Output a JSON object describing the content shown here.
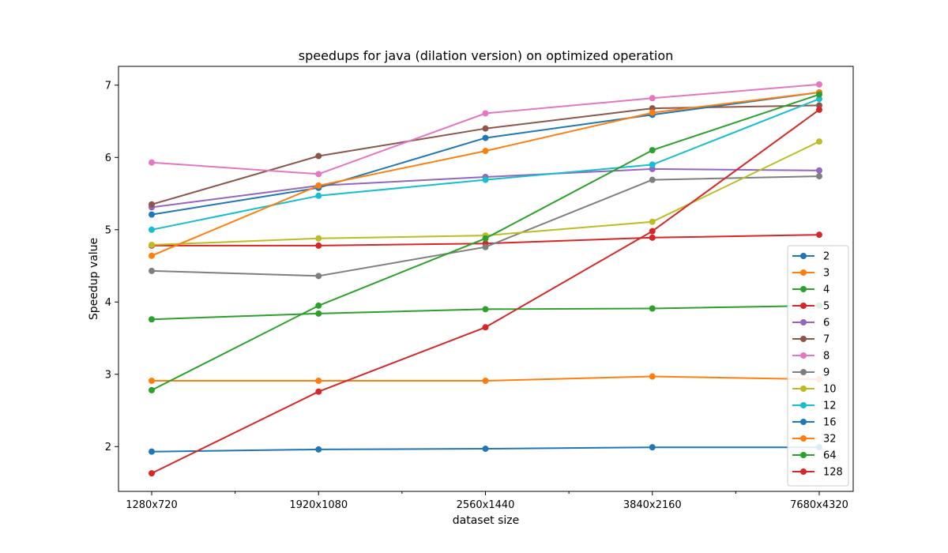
{
  "chart_data": {
    "type": "line",
    "title": "speedups for java (dilation version) on optimized operation",
    "xlabel": "dataset size",
    "ylabel": "Speedup value",
    "categories": [
      "1280x720",
      "1920x1080",
      "2560x1440",
      "3840x2160",
      "7680x4320"
    ],
    "ylim": [
      1.38,
      7.26
    ],
    "yticks": [
      2,
      3,
      4,
      5,
      6,
      7
    ],
    "grid": false,
    "legend_position": "lower right",
    "series": [
      {
        "name": "2",
        "color": "#1f77b4",
        "values": [
          1.93,
          1.96,
          1.97,
          1.99,
          1.99
        ]
      },
      {
        "name": "3",
        "color": "#ff7f0e",
        "values": [
          2.91,
          2.91,
          2.91,
          2.97,
          2.93
        ]
      },
      {
        "name": "4",
        "color": "#2ca02c",
        "values": [
          3.76,
          3.84,
          3.9,
          3.91,
          3.95
        ]
      },
      {
        "name": "5",
        "color": "#d62728",
        "values": [
          4.78,
          4.78,
          4.81,
          4.89,
          4.93
        ]
      },
      {
        "name": "6",
        "color": "#9467bd",
        "values": [
          5.31,
          5.61,
          5.73,
          5.84,
          5.82
        ]
      },
      {
        "name": "7",
        "color": "#8c564b",
        "values": [
          5.35,
          6.02,
          6.4,
          6.68,
          6.72
        ]
      },
      {
        "name": "8",
        "color": "#e377c2",
        "values": [
          5.93,
          5.77,
          6.61,
          6.82,
          7.01
        ]
      },
      {
        "name": "9",
        "color": "#7f7f7f",
        "values": [
          4.43,
          4.36,
          4.76,
          5.69,
          5.74
        ]
      },
      {
        "name": "10",
        "color": "#bcbd22",
        "values": [
          4.79,
          4.88,
          4.92,
          5.11,
          6.22
        ]
      },
      {
        "name": "12",
        "color": "#17becf",
        "values": [
          5.0,
          5.47,
          5.69,
          5.9,
          6.81
        ]
      },
      {
        "name": "16",
        "color": "#1f77b4",
        "values": [
          5.21,
          5.58,
          6.27,
          6.59,
          6.9
        ]
      },
      {
        "name": "32",
        "color": "#ff7f0e",
        "values": [
          4.64,
          5.61,
          6.09,
          6.62,
          6.9
        ]
      },
      {
        "name": "64",
        "color": "#2ca02c",
        "values": [
          2.78,
          3.95,
          4.88,
          6.1,
          6.87
        ]
      },
      {
        "name": "128",
        "color": "#d62728",
        "values": [
          1.63,
          2.76,
          3.65,
          4.98,
          6.66
        ]
      }
    ]
  }
}
